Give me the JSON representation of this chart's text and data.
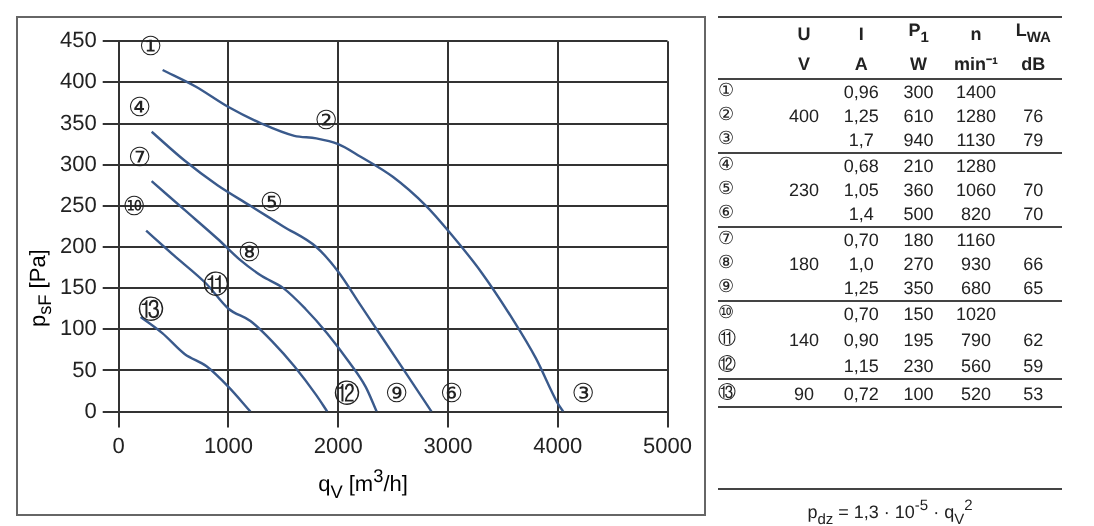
{
  "chart_data": [
    {
      "type": "line",
      "xlabel": "q$_{V}$ [m$^{3}$/h]",
      "ylabel": "p$_{sF}$ [Pa]",
      "xlim": [
        0,
        5000
      ],
      "xticks": [
        0,
        1000,
        2000,
        3000,
        4000,
        5000
      ],
      "ylim": [
        0,
        450
      ],
      "yticks": [
        0,
        50,
        100,
        150,
        200,
        250,
        300,
        350,
        400,
        450
      ],
      "grid": true,
      "legend": false,
      "marker": "none",
      "series": [
        {
          "color": "#3a5a8c",
          "x": [
            400,
            700,
            1000,
            1300,
            1600,
            1800,
            2000,
            2200,
            2500,
            2800,
            3000,
            3300,
            3600,
            3800,
            4000,
            4050
          ],
          "values": [
            415,
            395,
            370,
            350,
            335,
            332,
            325,
            310,
            285,
            250,
            220,
            170,
            110,
            65,
            10,
            0
          ]
        },
        {
          "color": "#3a5a8c",
          "x": [
            300,
            600,
            900,
            1200,
            1500,
            1800,
            2000,
            2200,
            2400,
            2600,
            2750,
            2850
          ],
          "values": [
            340,
            305,
            275,
            250,
            225,
            200,
            170,
            130,
            90,
            50,
            20,
            0
          ]
        },
        {
          "color": "#3a5a8c",
          "x": [
            300,
            600,
            900,
            1100,
            1300,
            1500,
            1700,
            1900,
            2100,
            2250,
            2350
          ],
          "values": [
            280,
            245,
            210,
            185,
            165,
            150,
            125,
            95,
            60,
            30,
            0
          ]
        },
        {
          "color": "#3a5a8c",
          "x": [
            250,
            500,
            800,
            1000,
            1200,
            1400,
            1600,
            1800,
            1900
          ],
          "values": [
            220,
            190,
            155,
            125,
            110,
            85,
            55,
            20,
            0
          ]
        },
        {
          "color": "#3a5a8c",
          "x": [
            200,
            400,
            600,
            800,
            1000,
            1200
          ],
          "values": [
            115,
            95,
            70,
            55,
            30,
            0
          ]
        }
      ],
      "annotations": [
        {
          "text": "①",
          "x": 400,
          "y": 415
        },
        {
          "text": "②",
          "x": 2000,
          "y": 325
        },
        {
          "text": "③",
          "x": 4050,
          "y": 0
        },
        {
          "text": "④",
          "x": 300,
          "y": 340
        },
        {
          "text": "⑤",
          "x": 1500,
          "y": 225
        },
        {
          "text": "⑥",
          "x": 2850,
          "y": 0
        },
        {
          "text": "⑦",
          "x": 300,
          "y": 280
        },
        {
          "text": "⑧",
          "x": 1300,
          "y": 165
        },
        {
          "text": "⑨",
          "x": 2350,
          "y": 0
        },
        {
          "text": "⑩",
          "x": 250,
          "y": 220
        },
        {
          "text": "⑪",
          "x": 1000,
          "y": 125
        },
        {
          "text": "⑫",
          "x": 1900,
          "y": 0
        },
        {
          "text": "⑬",
          "x": 400,
          "y": 95
        }
      ]
    },
    {
      "type": "other",
      "cell_labels": [
        [
          null,
          "U",
          "I",
          "P$_{1}$",
          "n",
          "L$_{WA}$"
        ],
        [
          null,
          "V",
          "A",
          "W",
          "min⁻¹",
          "dB"
        ],
        [
          "①",
          null,
          "0,96",
          "300",
          "1400",
          null
        ],
        [
          "②",
          "400",
          "1,25",
          "610",
          "1280",
          "76"
        ],
        [
          "③",
          null,
          "1,7",
          "940",
          "1130",
          "79"
        ],
        [
          "④",
          null,
          "0,68",
          "210",
          "1280",
          null
        ],
        [
          "⑤",
          "230",
          "1,05",
          "360",
          "1060",
          "70"
        ],
        [
          "⑥",
          null,
          "1,4",
          "500",
          "820",
          "70"
        ],
        [
          "⑦",
          null,
          "0,70",
          "180",
          "1160",
          null
        ],
        [
          "⑧",
          "180",
          "1,0",
          "270",
          "930",
          "66"
        ],
        [
          "⑨",
          null,
          "1,25",
          "350",
          "680",
          "65"
        ],
        [
          "⑩",
          null,
          "0,70",
          "150",
          "1020",
          null
        ],
        [
          "⑪",
          "140",
          "0,90",
          "195",
          "790",
          "62"
        ],
        [
          "⑫",
          null,
          "1,15",
          "230",
          "560",
          "59"
        ],
        [
          "⑬",
          "90",
          "0,72",
          "100",
          "520",
          "53"
        ]
      ],
      "annotations": [
        "p$_{dz}$ = 1,3 · 10$^{-5}$ · q$_{V}$$^{2}$"
      ]
    }
  ]
}
